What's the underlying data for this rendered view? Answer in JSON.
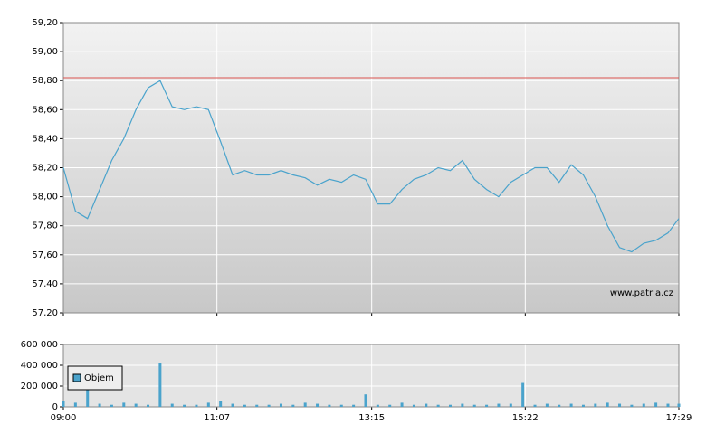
{
  "chart_data": [
    {
      "type": "line",
      "x": [
        "09:00",
        "09:10",
        "09:20",
        "09:30",
        "09:40",
        "09:50",
        "10:00",
        "10:10",
        "10:20",
        "10:30",
        "10:40",
        "10:50",
        "11:00",
        "11:10",
        "11:20",
        "11:30",
        "11:40",
        "11:50",
        "12:00",
        "12:10",
        "12:20",
        "12:30",
        "12:40",
        "12:50",
        "13:00",
        "13:10",
        "13:20",
        "13:30",
        "13:40",
        "13:50",
        "14:00",
        "14:10",
        "14:20",
        "14:30",
        "14:40",
        "14:50",
        "15:00",
        "15:10",
        "15:20",
        "15:30",
        "15:40",
        "15:50",
        "16:00",
        "16:10",
        "16:20",
        "16:30",
        "16:40",
        "16:50",
        "17:00",
        "17:10",
        "17:20",
        "17:29"
      ],
      "series": [
        {
          "color": "#4aa3cc",
          "values": [
            58.2,
            57.9,
            57.85,
            58.05,
            58.25,
            58.4,
            58.6,
            58.75,
            58.8,
            58.62,
            58.6,
            58.62,
            58.6,
            58.38,
            58.15,
            58.18,
            58.15,
            58.15,
            58.18,
            58.15,
            58.13,
            58.08,
            58.12,
            58.1,
            58.15,
            58.12,
            57.95,
            57.95,
            58.05,
            58.12,
            58.15,
            58.2,
            58.18,
            58.25,
            58.12,
            58.05,
            58.0,
            58.1,
            58.15,
            58.2,
            58.2,
            58.1,
            58.22,
            58.15,
            58.0,
            57.8,
            57.65,
            57.62,
            57.68,
            57.7,
            57.75,
            57.85
          ]
        }
      ],
      "reference_line": {
        "value": 58.82,
        "color": "#d9534f"
      },
      "annotation": "www.patria.cz",
      "xlim": [
        "09:00",
        "17:29"
      ],
      "xticks": [
        "09:00",
        "11:07",
        "13:15",
        "15:22",
        "17:29"
      ],
      "ylim": [
        57.2,
        59.2
      ],
      "yticks": [
        {
          "value": 57.2,
          "label": "57,20"
        },
        {
          "value": 57.4,
          "label": "57,40"
        },
        {
          "value": 57.6,
          "label": "57,60"
        },
        {
          "value": 57.8,
          "label": "57,80"
        },
        {
          "value": 58.0,
          "label": "58,00"
        },
        {
          "value": 58.2,
          "label": "58,20"
        },
        {
          "value": 58.4,
          "label": "58,40"
        },
        {
          "value": 58.6,
          "label": "58,60"
        },
        {
          "value": 58.8,
          "label": "58,80"
        },
        {
          "value": 59.0,
          "label": "59,00"
        },
        {
          "value": 59.2,
          "label": "59,20"
        }
      ],
      "grid": true
    },
    {
      "type": "bar",
      "x": [
        "09:00",
        "09:10",
        "09:20",
        "09:30",
        "09:40",
        "09:50",
        "10:00",
        "10:10",
        "10:20",
        "10:30",
        "10:40",
        "10:50",
        "11:00",
        "11:10",
        "11:20",
        "11:30",
        "11:40",
        "11:50",
        "12:00",
        "12:10",
        "12:20",
        "12:30",
        "12:40",
        "12:50",
        "13:00",
        "13:10",
        "13:20",
        "13:30",
        "13:40",
        "13:50",
        "14:00",
        "14:10",
        "14:20",
        "14:30",
        "14:40",
        "14:50",
        "15:00",
        "15:10",
        "15:20",
        "15:30",
        "15:40",
        "15:50",
        "16:00",
        "16:10",
        "16:20",
        "16:30",
        "16:40",
        "16:50",
        "17:00",
        "17:10",
        "17:20",
        "17:29"
      ],
      "series": [
        {
          "name": "Objem",
          "color": "#4aa3cc",
          "values": [
            60000,
            40000,
            180000,
            30000,
            20000,
            40000,
            30000,
            20000,
            420000,
            30000,
            20000,
            20000,
            40000,
            60000,
            30000,
            20000,
            20000,
            20000,
            30000,
            20000,
            40000,
            30000,
            20000,
            20000,
            20000,
            120000,
            20000,
            20000,
            40000,
            20000,
            30000,
            20000,
            20000,
            30000,
            20000,
            20000,
            30000,
            30000,
            230000,
            20000,
            30000,
            20000,
            30000,
            20000,
            30000,
            40000,
            30000,
            20000,
            30000,
            40000,
            30000,
            30000
          ]
        }
      ],
      "xlim": [
        "09:00",
        "17:29"
      ],
      "xticks": [
        "09:00",
        "11:07",
        "13:15",
        "15:22",
        "17:29"
      ],
      "ylim": [
        0,
        600000
      ],
      "yticks": [
        {
          "value": 0,
          "label": "0"
        },
        {
          "value": 200000,
          "label": "200 000"
        },
        {
          "value": 400000,
          "label": "400 000"
        },
        {
          "value": 600000,
          "label": "600 000"
        }
      ],
      "legend": "top-left",
      "grid": true
    }
  ]
}
